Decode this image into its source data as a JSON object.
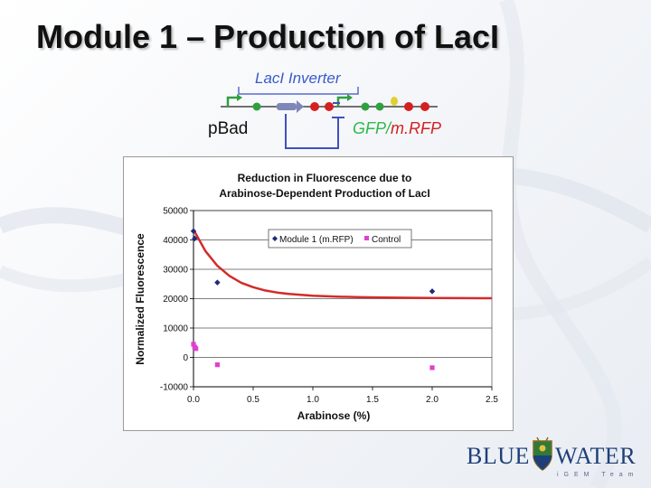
{
  "slide": {
    "title": "Module 1 – Production of LacI"
  },
  "circuit": {
    "label": "LacI Inverter",
    "promoter": "pBad",
    "reporter_gfp": "GFP",
    "reporter_sep": "/",
    "reporter_mrfp": "m.RFP",
    "colors": {
      "label": "#3a5bcc",
      "reporter": "#2fb84a",
      "mrfp": "#d42020",
      "connector": "#4050c0"
    }
  },
  "logo": {
    "left": "BLUE",
    "right": "WATER",
    "sub": "iGEM Team"
  },
  "chart_data": {
    "type": "scatter",
    "title_line1": "Reduction in Fluorescence due to",
    "title_line2": "Arabinose-Dependent Production of LacI",
    "xlabel": "Arabinose (%)",
    "ylabel": "Normalized Fluorescence",
    "xlim": [
      0,
      2.5
    ],
    "ylim": [
      -10000,
      50000
    ],
    "xticks": [
      0,
      0.5,
      1.0,
      1.5,
      2.0,
      2.5
    ],
    "xtick_labels": [
      "0.0",
      "0.5",
      "1.0",
      "1.5",
      "2.0",
      "2.5"
    ],
    "yticks": [
      -10000,
      0,
      10000,
      20000,
      30000,
      40000,
      50000
    ],
    "ytick_labels": [
      "-10000",
      "0",
      "10000",
      "20000",
      "30000",
      "40000",
      "50000"
    ],
    "grid": "horizontal",
    "legend_position": "top-right",
    "series": [
      {
        "name": "Module 1 (m.RFP)",
        "marker": "diamond",
        "color": "#1f2a78",
        "x": [
          0.0,
          0.01,
          0.2,
          2.0
        ],
        "y": [
          43000,
          40500,
          25500,
          22500
        ]
      },
      {
        "name": "Control",
        "marker": "square",
        "color": "#e040d0",
        "x": [
          0.0,
          0.01,
          0.02,
          0.2,
          2.0
        ],
        "y": [
          4500,
          3500,
          3000,
          -2500,
          -3500
        ]
      }
    ],
    "fit_curve": {
      "color": "#d42a2a",
      "x": [
        0.0,
        0.1,
        0.2,
        0.3,
        0.4,
        0.5,
        0.6,
        0.7,
        0.8,
        0.9,
        1.0,
        1.2,
        1.4,
        1.6,
        1.8,
        2.0,
        2.2,
        2.4,
        2.5
      ],
      "y": [
        43500,
        36200,
        31200,
        27800,
        25400,
        23900,
        22800,
        22100,
        21600,
        21300,
        21000,
        20700,
        20500,
        20400,
        20300,
        20250,
        20200,
        20150,
        20150
      ]
    }
  }
}
